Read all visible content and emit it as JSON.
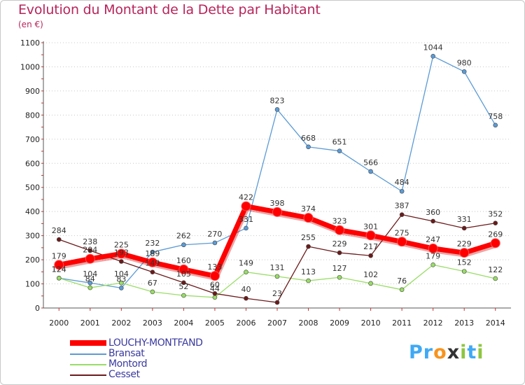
{
  "chart_data": {
    "type": "line",
    "title": "Evolution du Montant de la Dette par Habitant",
    "subtitle": "(en €)",
    "x": [
      "2000",
      "2001",
      "2002",
      "2003",
      "2004",
      "2005",
      "2006",
      "2007",
      "2008",
      "2009",
      "2010",
      "2011",
      "2012",
      "2013",
      "2014"
    ],
    "ylim": [
      0,
      1100
    ],
    "yticks": [
      0,
      100,
      200,
      300,
      400,
      500,
      600,
      700,
      800,
      900,
      1000,
      1100
    ],
    "grid": "horizontal-dotted",
    "legend_position": "bottom-left",
    "series": [
      {
        "name": "LOUCHY-MONTFAND",
        "color": "#ff0000",
        "values": [
          179,
          204,
          225,
          189,
          160,
          133,
          422,
          398,
          374,
          323,
          301,
          275,
          247,
          229,
          269
        ]
      },
      {
        "name": "Bransat",
        "color": "#5b9bd5",
        "values": [
          124,
          104,
          83,
          232,
          262,
          270,
          331,
          823,
          668,
          651,
          566,
          484,
          1044,
          980,
          758
        ]
      },
      {
        "name": "Montord",
        "color": "#99dd66",
        "values": [
          124,
          84,
          104,
          67,
          52,
          44,
          149,
          131,
          113,
          127,
          102,
          76,
          179,
          152,
          122
        ]
      },
      {
        "name": "Cesset",
        "color": "#6b1a1a",
        "values": [
          284,
          238,
          193,
          149,
          105,
          60,
          40,
          23,
          255,
          229,
          217,
          387,
          360,
          331,
          352
        ]
      }
    ]
  },
  "brand": {
    "letters": [
      "P",
      "r",
      "o",
      "x",
      "i",
      "t",
      "i"
    ],
    "colors": [
      "#3fa9f5",
      "#3fa9f5",
      "#f7941d",
      "#333333",
      "#8dc63f",
      "#3fa9f5",
      "#8dc63f"
    ]
  }
}
